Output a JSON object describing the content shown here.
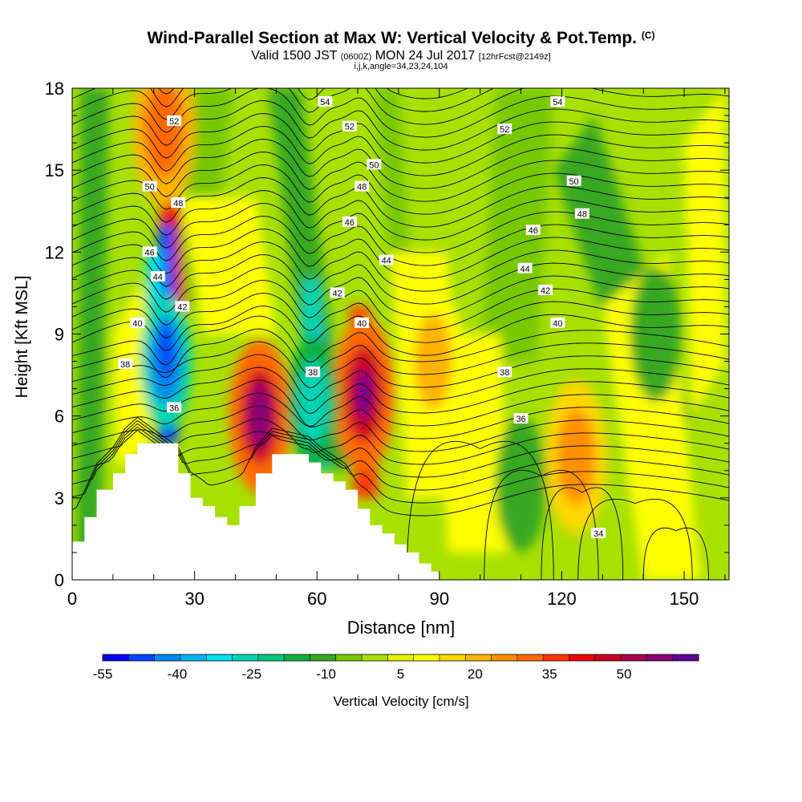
{
  "chart_data": {
    "type": "heatmap",
    "title_main": "Wind-Parallel Section at Max W: Vertical Velocity & Pot.Temp.",
    "title_mark": "(C)",
    "subtitle_a": "Valid 1500 JST",
    "subtitle_b": "(0600Z)",
    "subtitle_c": "MON 24 Jul 2017",
    "subtitle_d": "[12hrFcst@2149z]",
    "subtitle_line2": "i,j,k,angle=34,23,24,104",
    "xlabel": "Distance [nm]",
    "ylabel": "Height [Kft MSL]",
    "xlim": [
      0,
      161
    ],
    "ylim": [
      0,
      18
    ],
    "x_ticks": [
      0,
      30,
      60,
      90,
      120,
      150
    ],
    "y_ticks": [
      0,
      3,
      6,
      9,
      12,
      15,
      18
    ],
    "colorbar": {
      "label": "Vertical Velocity [cm/s]",
      "range": [
        -55,
        65
      ],
      "tick_values": [
        -55,
        -40,
        -25,
        -10,
        5,
        20,
        35,
        50
      ],
      "colors": [
        "#0000ff",
        "#0044ff",
        "#0088ee",
        "#00b4f0",
        "#00e0ee",
        "#00d4b4",
        "#00c878",
        "#10b040",
        "#38a820",
        "#78c800",
        "#a8e000",
        "#e8f000",
        "#ffff00",
        "#ffd800",
        "#ffb400",
        "#ff9000",
        "#ff6a00",
        "#ff3800",
        "#ee0000",
        "#cc0020",
        "#a80048",
        "#880078",
        "#5a0096"
      ]
    },
    "terrain_profile": [
      {
        "x": 0,
        "h": 1.4
      },
      {
        "x": 3,
        "h": 2.3
      },
      {
        "x": 6,
        "h": 3.3
      },
      {
        "x": 10,
        "h": 3.9
      },
      {
        "x": 13,
        "h": 4.6
      },
      {
        "x": 16,
        "h": 5.0
      },
      {
        "x": 26,
        "h": 3.9
      },
      {
        "x": 29,
        "h": 3.0
      },
      {
        "x": 32,
        "h": 2.7
      },
      {
        "x": 35,
        "h": 2.3
      },
      {
        "x": 38,
        "h": 2.0
      },
      {
        "x": 41,
        "h": 2.7
      },
      {
        "x": 45,
        "h": 3.9
      },
      {
        "x": 49,
        "h": 4.6
      },
      {
        "x": 58,
        "h": 4.3
      },
      {
        "x": 61,
        "h": 3.9
      },
      {
        "x": 64,
        "h": 3.6
      },
      {
        "x": 67,
        "h": 3.3
      },
      {
        "x": 70,
        "h": 2.6
      },
      {
        "x": 73,
        "h": 2.0
      },
      {
        "x": 76,
        "h": 1.7
      },
      {
        "x": 79,
        "h": 1.3
      },
      {
        "x": 82,
        "h": 1.0
      },
      {
        "x": 85,
        "h": 0.6
      },
      {
        "x": 88,
        "h": 0.3
      },
      {
        "x": 90,
        "h": 0.3
      }
    ],
    "w_features_cm_s": [
      {
        "x": 46,
        "z": 6.0,
        "w": 55,
        "kind": "updraft"
      },
      {
        "x": 71.5,
        "z": 6.8,
        "w": 55,
        "kind": "updraft"
      },
      {
        "x": 22.5,
        "z": 16.5,
        "w": 38,
        "kind": "updraft"
      },
      {
        "x": 23,
        "z": 8.0,
        "w": -50,
        "kind": "downdraft"
      },
      {
        "x": 59,
        "z": 6.5,
        "w": -30,
        "kind": "downdraft"
      },
      {
        "x": 110,
        "z": 3.5,
        "w": -15,
        "kind": "downdraft"
      },
      {
        "x": 123.5,
        "z": 4.5,
        "w": 30,
        "kind": "updraft"
      },
      {
        "x": 88.5,
        "z": 8.0,
        "w": 22,
        "kind": "updraft"
      },
      {
        "x": 143,
        "z": 9.0,
        "w": -15,
        "kind": "downdraft"
      }
    ],
    "theta_labels": [
      {
        "v": "52",
        "x": 25,
        "z": 16.8
      },
      {
        "v": "50",
        "x": 19,
        "z": 14.4
      },
      {
        "v": "48",
        "x": 26,
        "z": 13.8
      },
      {
        "v": "46",
        "x": 19,
        "z": 12.0
      },
      {
        "v": "44",
        "x": 21,
        "z": 11.1
      },
      {
        "v": "42",
        "x": 27,
        "z": 10.0
      },
      {
        "v": "40",
        "x": 16,
        "z": 9.4
      },
      {
        "v": "38",
        "x": 13,
        "z": 7.9
      },
      {
        "v": "36",
        "x": 25,
        "z": 6.3
      },
      {
        "v": "54",
        "x": 62,
        "z": 17.5
      },
      {
        "v": "52",
        "x": 68,
        "z": 16.6
      },
      {
        "v": "50",
        "x": 74,
        "z": 15.2
      },
      {
        "v": "48",
        "x": 71,
        "z": 14.4
      },
      {
        "v": "46",
        "x": 68,
        "z": 13.1
      },
      {
        "v": "44",
        "x": 77,
        "z": 11.7
      },
      {
        "v": "42",
        "x": 65,
        "z": 10.5
      },
      {
        "v": "40",
        "x": 71,
        "z": 9.4
      },
      {
        "v": "38",
        "x": 59,
        "z": 7.6
      },
      {
        "v": "54",
        "x": 119,
        "z": 17.5
      },
      {
        "v": "52",
        "x": 106,
        "z": 16.5
      },
      {
        "v": "50",
        "x": 123,
        "z": 14.6
      },
      {
        "v": "48",
        "x": 125,
        "z": 13.4
      },
      {
        "v": "46",
        "x": 113,
        "z": 12.8
      },
      {
        "v": "44",
        "x": 111,
        "z": 11.4
      },
      {
        "v": "42",
        "x": 116,
        "z": 10.6
      },
      {
        "v": "40",
        "x": 119,
        "z": 9.4
      },
      {
        "v": "38",
        "x": 106,
        "z": 7.6
      },
      {
        "v": "36",
        "x": 110,
        "z": 5.9
      },
      {
        "v": "34",
        "x": 129,
        "z": 1.7
      }
    ]
  }
}
